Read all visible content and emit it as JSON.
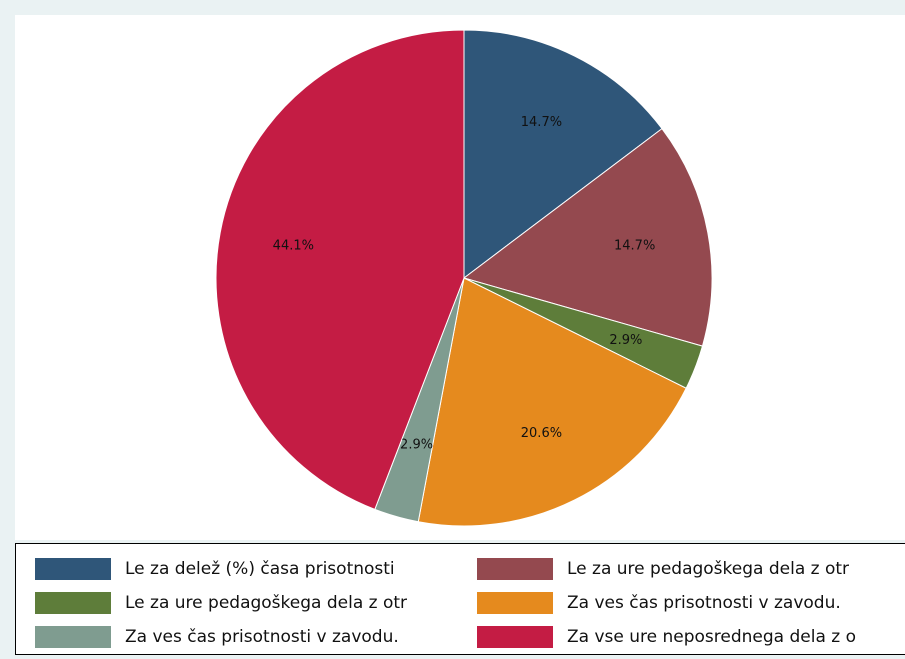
{
  "chart_data": {
    "type": "pie",
    "categories": [
      "Le za delež (%) časa prisotnosti",
      "Le za ure pedagoškega dela z otr",
      "Le za ure pedagoškega dela z otr",
      "Za ves čas prisotnosti v zavodu.",
      "Za ves čas prisotnosti v zavodu.",
      "Za vse ure neposrednega dela z o"
    ],
    "values": [
      14.7,
      14.7,
      2.9,
      20.6,
      2.9,
      44.1
    ],
    "value_labels": [
      "14.7%",
      "14.7%",
      "2.9%",
      "20.6%",
      "2.9%",
      "44.1%"
    ],
    "colors": [
      "#2f5679",
      "#94494f",
      "#5e7d3a",
      "#e58a1e",
      "#7f9c90",
      "#c41c44"
    ]
  }
}
